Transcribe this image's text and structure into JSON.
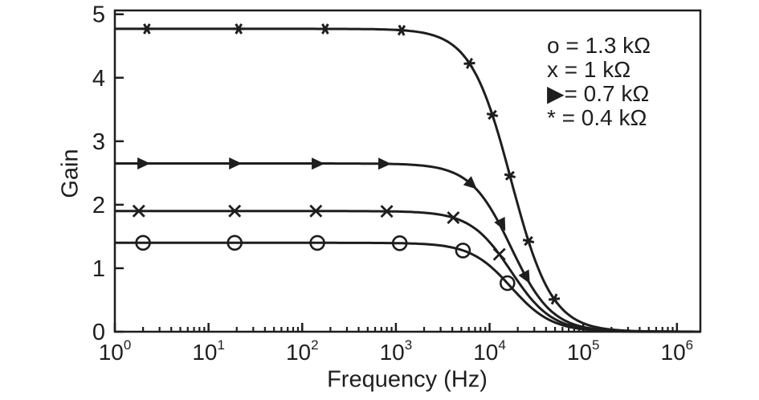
{
  "figure": {
    "background": "#ffffff",
    "ink_color": "#1e1e1e",
    "ylabel": "Gain",
    "xlabel": "Frequency (Hz)",
    "legend": {
      "entries": [
        {
          "symbol": "circle",
          "label": "o = 1.3 kΩ"
        },
        {
          "symbol": "x",
          "label": "x = 1 kΩ"
        },
        {
          "symbol": "triangle-right",
          "label": "▶= 0.7 kΩ"
        },
        {
          "symbol": "asterisk",
          "label": "* = 0.4 kΩ"
        }
      ]
    }
  },
  "chart_data": {
    "type": "line",
    "title": "",
    "xlabel": "Frequency (Hz)",
    "ylabel": "Gain",
    "x_scale": "log10",
    "x_log_span": 6.25,
    "x_ticks": {
      "base": "10",
      "major_exponents": [
        0,
        1,
        2,
        3,
        4,
        5,
        6
      ],
      "minor_multiples": [
        2,
        3,
        4,
        5,
        6,
        7,
        8,
        9
      ]
    },
    "ylim": [
      0,
      5.06
    ],
    "y_ticks": [
      0,
      1,
      2,
      3,
      4,
      5
    ],
    "grid": false,
    "legend_position": "top-right",
    "model": "gain = g0 / (1 + (f/fc_hz)^2)",
    "series": [
      {
        "name": "1.3 kΩ",
        "marker": "circle",
        "g0": 1.4,
        "fc_hz": 17000,
        "points": [
          [
            2,
            1.4
          ],
          [
            19,
            1.4
          ],
          [
            145,
            1.399
          ],
          [
            1100,
            1.394
          ],
          [
            5200,
            1.279
          ],
          [
            15500,
            0.765
          ]
        ]
      },
      {
        "name": "1 kΩ",
        "marker": "x",
        "g0": 1.9,
        "fc_hz": 17000,
        "points": [
          [
            1.8,
            1.9
          ],
          [
            19,
            1.9
          ],
          [
            140,
            1.9
          ],
          [
            800,
            1.896
          ],
          [
            4100,
            1.796
          ],
          [
            12700,
            1.22
          ]
        ]
      },
      {
        "name": "0.7 kΩ",
        "marker": "triangle-right",
        "g0": 2.65,
        "fc_hz": 17000,
        "points": [
          [
            2,
            2.65
          ],
          [
            19,
            2.65
          ],
          [
            145,
            2.648
          ],
          [
            745,
            2.645
          ],
          [
            6400,
            2.321
          ],
          [
            13600,
            1.687
          ],
          [
            24700,
            0.858
          ]
        ]
      },
      {
        "name": "0.4 kΩ",
        "marker": "asterisk",
        "g0": 4.77,
        "fc_hz": 17000,
        "points": [
          [
            2.2,
            4.77
          ],
          [
            21,
            4.77
          ],
          [
            176,
            4.769
          ],
          [
            1150,
            4.748
          ],
          [
            6100,
            4.226
          ],
          [
            10700,
            3.415
          ],
          [
            16500,
            2.456
          ],
          [
            26000,
            1.428
          ],
          [
            49000,
            0.513
          ]
        ]
      }
    ]
  }
}
